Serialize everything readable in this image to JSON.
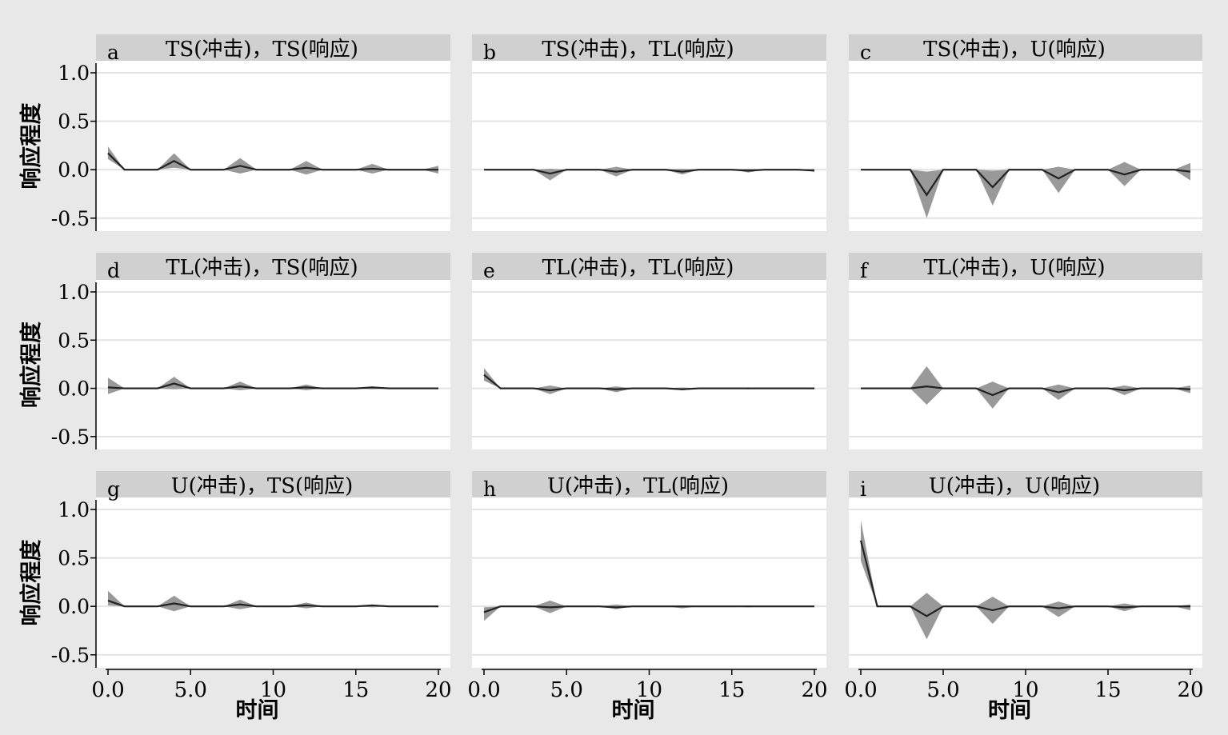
{
  "y_axis_title": "响应程度",
  "x_axis_title": "时间",
  "chart_data": {
    "type": "area",
    "xlim": [
      0,
      20
    ],
    "ylim": [
      -0.6,
      1.1
    ],
    "x_ticks": [
      0,
      5,
      10,
      15,
      20
    ],
    "x_tick_labels": [
      "0.0",
      "5.0",
      "10",
      "15",
      "20"
    ],
    "y_ticks": [
      1.0,
      0.5,
      0.0,
      -0.5
    ],
    "y_tick_labels": [
      "1.0",
      "0.5",
      "0.0",
      "-0.5"
    ],
    "grid": true,
    "band_color": "#999999",
    "line_color": "#222222",
    "x": [
      0,
      1,
      2,
      3,
      4,
      5,
      6,
      7,
      8,
      9,
      10,
      11,
      12,
      13,
      14,
      15,
      16,
      17,
      18,
      19,
      20
    ],
    "panels": [
      {
        "letter": "a",
        "title": "TS(冲击)，TS(响应)",
        "irf": [
          0.17,
          0,
          0,
          0,
          0.09,
          0,
          0,
          0,
          0.04,
          0,
          0,
          0,
          0.02,
          0,
          0,
          0,
          0.01,
          0,
          0,
          0,
          0
        ],
        "upper": [
          0.24,
          0,
          0,
          0,
          0.17,
          0,
          0,
          0,
          0.12,
          0,
          0,
          0,
          0.09,
          0,
          0,
          0,
          0.06,
          0,
          0,
          0,
          0.04
        ],
        "lower": [
          0.11,
          0,
          0,
          0,
          0.02,
          0,
          0,
          0,
          -0.04,
          0,
          0,
          0,
          -0.05,
          0,
          0,
          0,
          -0.04,
          0,
          0,
          0,
          -0.04
        ]
      },
      {
        "letter": "b",
        "title": "TS(冲击)，TL(响应)",
        "irf": [
          0,
          0,
          0,
          0,
          -0.04,
          0,
          0,
          0,
          -0.02,
          0,
          0,
          0,
          -0.02,
          0,
          0,
          0,
          -0.01,
          0,
          0,
          0,
          -0.01
        ],
        "upper": [
          0,
          0,
          0,
          0,
          0.01,
          0,
          0,
          0,
          0.03,
          0,
          0,
          0,
          0.01,
          0,
          0,
          0,
          0.01,
          0,
          0,
          0,
          0.01
        ],
        "lower": [
          0,
          0,
          0,
          0,
          -0.11,
          0,
          0,
          0,
          -0.07,
          0,
          0,
          0,
          -0.05,
          0,
          0,
          0,
          -0.03,
          0,
          0,
          0,
          -0.02
        ]
      },
      {
        "letter": "c",
        "title": "TS(冲击)，U(响应)",
        "irf": [
          0,
          0,
          0,
          0,
          -0.26,
          0,
          0,
          0,
          -0.18,
          0,
          0,
          0,
          -0.09,
          0,
          0,
          0,
          -0.05,
          0,
          0,
          0,
          -0.02
        ],
        "upper": [
          0,
          0,
          0,
          0,
          -0.02,
          0,
          0,
          0,
          -0.01,
          0,
          0,
          0,
          0.03,
          0,
          0,
          0,
          0.08,
          0,
          0,
          0,
          0.07
        ],
        "lower": [
          0,
          0,
          0,
          0,
          -0.5,
          0,
          0,
          0,
          -0.37,
          0,
          0,
          0,
          -0.24,
          0,
          0,
          0,
          -0.17,
          0,
          0,
          0,
          -0.11
        ]
      },
      {
        "letter": "d",
        "title": "TL(冲击)，TS(响应)",
        "irf": [
          0.01,
          0,
          0,
          0,
          0.05,
          0,
          0,
          0,
          0.02,
          0,
          0,
          0,
          0.01,
          0,
          0,
          0,
          0.01,
          0,
          0,
          0,
          0
        ],
        "upper": [
          0.11,
          0,
          0,
          0,
          0.12,
          0,
          0,
          0,
          0.07,
          0,
          0,
          0,
          0.04,
          0,
          0,
          0,
          0.02,
          0,
          0,
          0,
          0.01
        ],
        "lower": [
          -0.06,
          0,
          0,
          0,
          -0.01,
          0,
          0,
          0,
          -0.02,
          0,
          0,
          0,
          -0.02,
          0,
          0,
          0,
          -0.01,
          0,
          0,
          0,
          -0.01
        ]
      },
      {
        "letter": "e",
        "title": "TL(冲击)，TL(响应)",
        "irf": [
          0.14,
          0,
          0,
          0,
          -0.02,
          0,
          0,
          0,
          -0.01,
          0,
          0,
          0,
          -0.01,
          0,
          0,
          0,
          0,
          0,
          0,
          0,
          0
        ],
        "upper": [
          0.21,
          0,
          0,
          0,
          0.03,
          0,
          0,
          0,
          0.02,
          0,
          0,
          0,
          0.01,
          0,
          0,
          0,
          0.01,
          0,
          0,
          0,
          0.01
        ],
        "lower": [
          0.08,
          0,
          0,
          0,
          -0.06,
          0,
          0,
          0,
          -0.04,
          0,
          0,
          0,
          -0.02,
          0,
          0,
          0,
          -0.01,
          0,
          0,
          0,
          -0.01
        ]
      },
      {
        "letter": "f",
        "title": "TL(冲击)，U(响应)",
        "irf": [
          0,
          0,
          0,
          0,
          0.02,
          0,
          0,
          0,
          -0.07,
          0,
          0,
          0,
          -0.04,
          0,
          0,
          0,
          -0.02,
          0,
          0,
          0,
          -0.01
        ],
        "upper": [
          0,
          0,
          0,
          0,
          0.23,
          0,
          0,
          0,
          0.07,
          0,
          0,
          0,
          0.04,
          0,
          0,
          0,
          0.03,
          0,
          0,
          0,
          0.03
        ],
        "lower": [
          0,
          0,
          0,
          0,
          -0.17,
          0,
          0,
          0,
          -0.21,
          0,
          0,
          0,
          -0.12,
          0,
          0,
          0,
          -0.07,
          0,
          0,
          0,
          -0.05
        ]
      },
      {
        "letter": "g",
        "title": "U(冲击)，TS(响应)",
        "irf": [
          0.06,
          0,
          0,
          0,
          0.03,
          0,
          0,
          0,
          0.02,
          0,
          0,
          0,
          0.01,
          0,
          0,
          0,
          0.01,
          0,
          0,
          0,
          0
        ],
        "upper": [
          0.16,
          0,
          0,
          0,
          0.11,
          0,
          0,
          0,
          0.07,
          0,
          0,
          0,
          0.04,
          0,
          0,
          0,
          0.02,
          0,
          0,
          0,
          0.01
        ],
        "lower": [
          0.01,
          0,
          0,
          0,
          -0.05,
          0,
          0,
          0,
          -0.03,
          0,
          0,
          0,
          -0.02,
          0,
          0,
          0,
          -0.01,
          0,
          0,
          0,
          -0.01
        ]
      },
      {
        "letter": "h",
        "title": "U(冲击)，TL(响应)",
        "irf": [
          -0.06,
          0,
          0,
          0,
          -0.01,
          0,
          0,
          0,
          -0.01,
          0,
          0,
          0,
          0,
          0,
          0,
          0,
          0,
          0,
          0,
          0,
          0
        ],
        "upper": [
          -0.01,
          0,
          0,
          0,
          0.06,
          0,
          0,
          0,
          0.02,
          0,
          0,
          0,
          0.01,
          0,
          0,
          0,
          0.01,
          0,
          0,
          0,
          0
        ],
        "lower": [
          -0.15,
          0,
          0,
          0,
          -0.07,
          0,
          0,
          0,
          -0.03,
          0,
          0,
          0,
          -0.02,
          0,
          0,
          0,
          -0.01,
          0,
          0,
          0,
          0
        ]
      },
      {
        "letter": "i",
        "title": "U(冲击)，U(响应)",
        "irf": [
          0.68,
          0,
          0,
          0,
          -0.1,
          0,
          0,
          0,
          -0.04,
          0,
          0,
          0,
          -0.02,
          0,
          0,
          0,
          -0.01,
          0,
          0,
          0,
          0
        ],
        "upper": [
          0.89,
          0,
          0,
          0,
          0.14,
          0,
          0,
          0,
          0.1,
          0,
          0,
          0,
          0.05,
          0,
          0,
          0,
          0.03,
          0,
          0,
          0,
          0.02
        ],
        "lower": [
          0.47,
          0,
          0,
          0,
          -0.34,
          0,
          0,
          0,
          -0.18,
          0,
          0,
          0,
          -0.11,
          0,
          0,
          0,
          -0.05,
          0,
          0,
          0,
          -0.04
        ]
      }
    ]
  }
}
